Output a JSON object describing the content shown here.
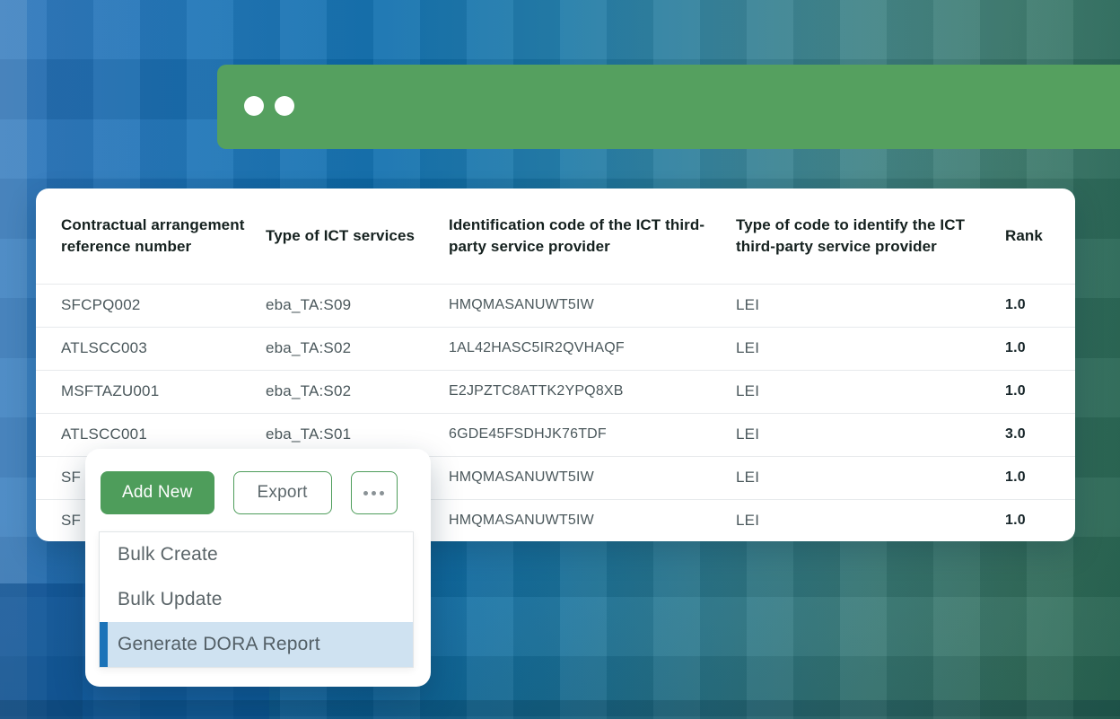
{
  "colors": {
    "bar_green": "#55a05f",
    "button_green": "#4e9d5b",
    "menu_highlight_bg": "#cfe2f1",
    "menu_highlight_accent": "#1c73b8"
  },
  "table": {
    "columns": [
      "Contractual arrangement reference number",
      "Type of ICT services",
      "Identification code of the ICT third-party service provider",
      "Type of code to identify the ICT third-party service provider",
      "Rank"
    ],
    "rows": [
      {
        "ref": "SFCPQ002",
        "type": "eba_TA:S09",
        "code": "HMQMASANUWT5IW",
        "code_type": "LEI",
        "rank": "1.0"
      },
      {
        "ref": "ATLSCC003",
        "type": "eba_TA:S02",
        "code": "1AL42HASC5IR2QVHAQF",
        "code_type": "LEI",
        "rank": "1.0"
      },
      {
        "ref": "MSFTAZU001",
        "type": "eba_TA:S02",
        "code": "E2JPZTC8ATTK2YPQ8XB",
        "code_type": "LEI",
        "rank": "1.0"
      },
      {
        "ref": "ATLSCC001",
        "type": "eba_TA:S01",
        "code": "6GDE45FSDHJK76TDF",
        "code_type": "LEI",
        "rank": "3.0"
      },
      {
        "ref": "SF",
        "type": "",
        "code": "HMQMASANUWT5IW",
        "code_type": "LEI",
        "rank": "1.0"
      },
      {
        "ref": "SF",
        "type": "",
        "code": "HMQMASANUWT5IW",
        "code_type": "LEI",
        "rank": "1.0"
      }
    ]
  },
  "toolbar": {
    "add_new_label": "Add New",
    "export_label": "Export",
    "more_icon": "ellipsis-icon"
  },
  "menu": {
    "items": [
      {
        "label": "Bulk Create",
        "highlighted": false
      },
      {
        "label": "Bulk Update",
        "highlighted": false
      },
      {
        "label": "Generate DORA Report",
        "highlighted": true
      }
    ]
  }
}
